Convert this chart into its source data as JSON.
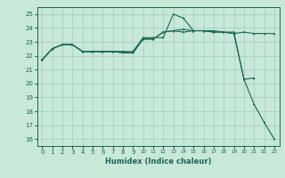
{
  "title": "",
  "xlabel": "Humidex (Indice chaleur)",
  "bg_color": "#c8e8d8",
  "grid_color": "#a0ccc0",
  "line_color": "#1a6655",
  "spine_color": "#1a6655",
  "xlim": [
    -0.5,
    23.5
  ],
  "ylim": [
    15.5,
    25.5
  ],
  "xticks": [
    0,
    1,
    2,
    3,
    4,
    5,
    6,
    7,
    8,
    9,
    10,
    11,
    12,
    13,
    14,
    15,
    16,
    17,
    18,
    19,
    20,
    21,
    22,
    23
  ],
  "yticks": [
    16,
    17,
    18,
    19,
    20,
    21,
    22,
    23,
    24,
    25
  ],
  "line1_x": [
    0,
    1,
    2,
    3,
    4,
    5,
    6,
    7,
    8,
    9,
    10,
    11,
    12,
    13,
    14,
    15,
    16,
    17,
    18,
    19,
    20,
    21,
    22,
    23
  ],
  "line1_y": [
    21.7,
    22.5,
    22.8,
    22.8,
    22.3,
    22.3,
    22.3,
    22.3,
    22.3,
    22.3,
    23.3,
    23.3,
    23.3,
    25.0,
    24.7,
    23.8,
    23.8,
    23.7,
    23.7,
    23.6,
    20.3,
    18.5,
    17.2,
    16.0
  ],
  "line2_x": [
    0,
    1,
    2,
    3,
    4,
    5,
    6,
    7,
    8,
    9,
    10,
    11,
    12,
    13,
    14,
    15,
    16,
    17,
    18,
    19,
    20,
    21,
    22,
    23
  ],
  "line2_y": [
    21.7,
    22.5,
    22.8,
    22.8,
    22.3,
    22.3,
    22.3,
    22.3,
    22.3,
    22.2,
    23.2,
    23.2,
    23.7,
    23.8,
    23.9,
    23.8,
    23.8,
    23.7,
    23.7,
    23.6,
    23.7,
    23.6,
    23.6,
    23.6
  ],
  "line3_x": [
    0,
    1,
    2,
    3,
    4,
    5,
    6,
    7,
    8,
    9,
    10,
    11,
    12,
    13,
    14,
    15,
    16,
    17,
    18,
    19,
    20,
    21
  ],
  "line3_y": [
    21.7,
    22.5,
    22.8,
    22.8,
    22.3,
    22.3,
    22.3,
    22.3,
    22.2,
    22.2,
    23.2,
    23.2,
    23.7,
    23.8,
    23.7,
    23.8,
    23.8,
    23.8,
    23.7,
    23.7,
    20.3,
    20.4
  ],
  "tick_labelsize": 5,
  "xlabel_fontsize": 6,
  "marker": ">",
  "markersize": 1.8,
  "linewidth": 0.8
}
